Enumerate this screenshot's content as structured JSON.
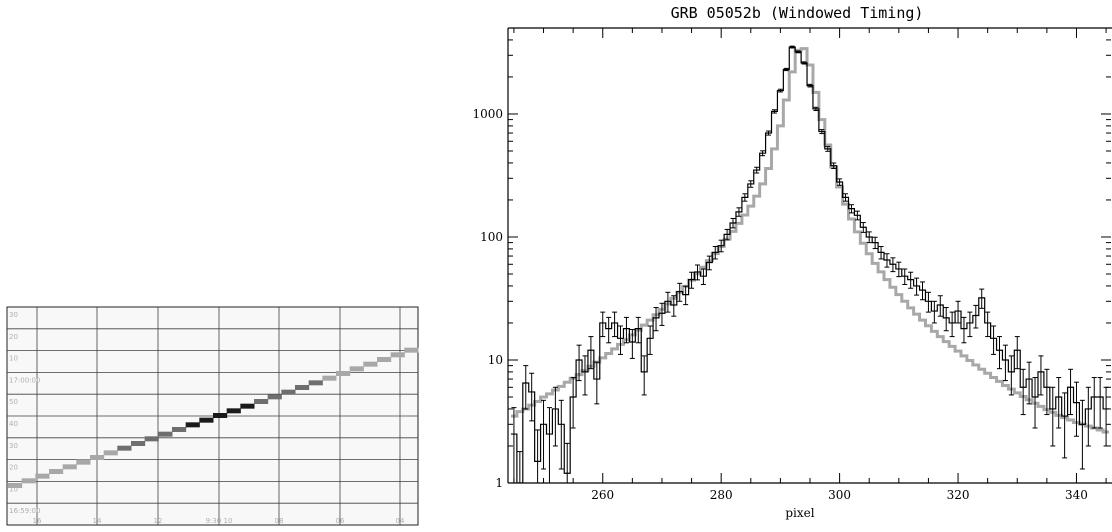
{
  "strip_chart": {
    "y_tick_labels": [
      "30",
      "20",
      "10",
      "17:00:00",
      "50",
      "40",
      "30",
      "20",
      "10",
      "16:59:00"
    ],
    "x_tick_labels": [
      "16",
      "14",
      "12",
      "9:30 10",
      "08",
      "06",
      "04"
    ],
    "colors": {
      "trace_light": "#a8a8a8",
      "trace_mid": "#6e6e6e",
      "trace_dark": "#1a1a1a",
      "grid": "#404040",
      "background": "#f8f8f8"
    }
  },
  "chart_data": {
    "type": "line",
    "title": "GRB 05052b (Windowed Timing)",
    "xlabel": "pixel",
    "ylabel": "",
    "xlim": [
      244,
      346
    ],
    "ylim": [
      1,
      5000
    ],
    "y_scale": "log",
    "x_ticks": [
      260,
      280,
      300,
      320,
      340
    ],
    "y_ticks": [
      1,
      10,
      100,
      1000
    ],
    "y_tick_labels": [
      "1",
      "10",
      "100",
      "1000"
    ],
    "grid": false,
    "series": [
      {
        "style": "step-histogram-with-error-bars",
        "color": "#000000",
        "x": [
          245,
          246,
          247,
          248,
          249,
          250,
          251,
          252,
          253,
          254,
          255,
          256,
          257,
          258,
          259,
          260,
          261,
          262,
          263,
          264,
          265,
          266,
          267,
          268,
          269,
          270,
          271,
          272,
          273,
          274,
          275,
          276,
          277,
          278,
          279,
          280,
          281,
          282,
          283,
          284,
          285,
          286,
          287,
          288,
          289,
          290,
          291,
          292,
          293,
          294,
          295,
          296,
          297,
          298,
          299,
          300,
          301,
          302,
          303,
          304,
          305,
          306,
          307,
          308,
          309,
          310,
          311,
          312,
          313,
          314,
          315,
          316,
          317,
          318,
          319,
          320,
          321,
          322,
          323,
          324,
          325,
          326,
          327,
          328,
          329,
          330,
          331,
          332,
          333,
          334,
          335,
          336,
          337,
          338,
          339,
          340,
          341,
          342,
          343,
          344,
          345
        ],
        "values": [
          2.5,
          1.0,
          6.5,
          5.5,
          1.5,
          3.0,
          2.5,
          4.0,
          3.0,
          1.2,
          5.0,
          10.0,
          8.0,
          12.0,
          7.0,
          20.0,
          18.0,
          20.0,
          15.0,
          18.0,
          14.0,
          18.0,
          8.0,
          15.0,
          22.0,
          24.0,
          30.0,
          28.0,
          36.0,
          34.0,
          45.0,
          52.0,
          48.0,
          62.0,
          75.0,
          85.0,
          105.0,
          130.0,
          160.0,
          210.0,
          270.0,
          350.0,
          480.0,
          700.0,
          1050.0,
          1550.0,
          2300.0,
          3500.0,
          3200.0,
          2600.0,
          1700.0,
          1100.0,
          720.0,
          520.0,
          380.0,
          280.0,
          210.0,
          170.0,
          150.0,
          120.0,
          100.0,
          90.0,
          75.0,
          65.0,
          60.0,
          55.0,
          48.0,
          45.0,
          40.0,
          37.0,
          30.0,
          25.0,
          28.0,
          22.0,
          20.0,
          25.0,
          18.0,
          20.0,
          23.0,
          32.0,
          20.0,
          15.0,
          12.0,
          10.0,
          8.0,
          12.0,
          6.0,
          7.0,
          5.0,
          8.0,
          6.0,
          4.0,
          5.0,
          3.5,
          6.0,
          4.5,
          3.0,
          4.0,
          5.0,
          5.0,
          4.0
        ],
        "errors": [
          1.6,
          0.8,
          2.5,
          2.3,
          1.2,
          1.7,
          1.6,
          2.0,
          1.7,
          0.9,
          2.2,
          3.2,
          2.8,
          3.5,
          2.6,
          4.5,
          4.2,
          4.5,
          3.9,
          4.2,
          3.7,
          4.2,
          2.8,
          3.9,
          4.7,
          4.9,
          5.5,
          5.3,
          6.0,
          5.8,
          6.7,
          7.2,
          6.9,
          7.9,
          8.7,
          9.2,
          10.2,
          11.4,
          12.6,
          14.5,
          16.4,
          18.7,
          21.9,
          26.5,
          32.4,
          39.4,
          48.0,
          59.2,
          56.6,
          51.0,
          41.2,
          33.2,
          26.8,
          22.8,
          19.5,
          16.7,
          14.5,
          13.0,
          12.2,
          11.0,
          10.0,
          9.5,
          8.7,
          8.1,
          7.7,
          7.4,
          6.9,
          6.7,
          6.3,
          6.1,
          5.5,
          5.0,
          5.3,
          4.7,
          4.5,
          5.0,
          4.2,
          4.5,
          4.8,
          5.7,
          4.5,
          3.9,
          3.5,
          3.2,
          2.8,
          3.5,
          2.4,
          2.6,
          2.2,
          2.8,
          2.4,
          2.0,
          2.2,
          1.9,
          2.4,
          2.1,
          1.7,
          2.0,
          2.2,
          2.2,
          2.0
        ]
      },
      {
        "style": "model-step",
        "color": "#a8a8a8",
        "x": [
          245,
          246,
          247,
          248,
          249,
          250,
          251,
          252,
          253,
          254,
          255,
          256,
          257,
          258,
          259,
          260,
          261,
          262,
          263,
          264,
          265,
          266,
          267,
          268,
          269,
          270,
          271,
          272,
          273,
          274,
          275,
          276,
          277,
          278,
          279,
          280,
          281,
          282,
          283,
          284,
          285,
          286,
          287,
          288,
          289,
          290,
          291,
          292,
          293,
          294,
          295,
          296,
          297,
          298,
          299,
          300,
          301,
          302,
          303,
          304,
          305,
          306,
          307,
          308,
          309,
          310,
          311,
          312,
          313,
          314,
          315,
          316,
          317,
          318,
          319,
          320,
          321,
          322,
          323,
          324,
          325,
          326,
          327,
          328,
          329,
          330,
          331,
          332,
          333,
          334,
          335,
          336,
          337,
          338,
          339,
          340,
          341,
          342,
          343,
          344,
          345
        ],
        "values": [
          3.5,
          3.8,
          4.0,
          4.3,
          4.6,
          5.0,
          5.3,
          5.7,
          6.1,
          6.6,
          7.1,
          7.6,
          8.2,
          8.9,
          9.6,
          10.4,
          11.3,
          12.3,
          13.4,
          14.6,
          16.0,
          17.5,
          19.2,
          21.1,
          23.3,
          25.8,
          28.6,
          31.8,
          35.5,
          39.7,
          44.6,
          50.2,
          56.7,
          64.3,
          73.2,
          83.6,
          96.0,
          111.0,
          129.0,
          151.0,
          178.0,
          215.0,
          270.0,
          360.0,
          520.0,
          800.0,
          1300.0,
          2200.0,
          3300.0,
          3400.0,
          2500.0,
          1500.0,
          900.0,
          560.0,
          370.0,
          255.0,
          185.0,
          140.0,
          110.0,
          89.0,
          73.0,
          61.0,
          52.0,
          45.0,
          39.0,
          34.0,
          30.0,
          26.5,
          23.6,
          21.1,
          19.0,
          17.1,
          15.5,
          14.1,
          12.9,
          11.8,
          10.8,
          9.9,
          9.1,
          8.4,
          7.8,
          7.2,
          6.7,
          6.2,
          5.8,
          5.4,
          5.05,
          4.75,
          4.45,
          4.2,
          3.95,
          3.75,
          3.55,
          3.4,
          3.25,
          3.1,
          3.0,
          2.9,
          2.8,
          2.7,
          2.6
        ]
      }
    ]
  }
}
